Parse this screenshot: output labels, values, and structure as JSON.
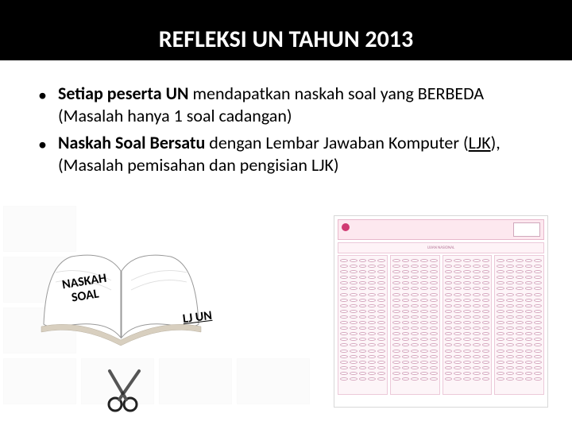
{
  "title": "REFLEKSI UN TAHUN 2013",
  "bullets": [
    {
      "pre": "Setiap peserta UN",
      "mid": " mendapatkan naskah soal yang BERBEDA ",
      "paren": "(Masalah hanya 1 soal cadangan)"
    },
    {
      "pre": "Naskah Soal Bersatu",
      "mid": " dengan Lembar Jawaban Komputer (",
      "ljk": "LJK",
      "post": "), ",
      "paren": "(Masalah pemisahan dan pengisian LJK)"
    }
  ],
  "book": {
    "line1": "NASKAH",
    "line2": "SOAL"
  },
  "lj_label": "LJ UN",
  "sheet": {
    "subtitle": "UJIAN NASIONAL"
  },
  "colors": {
    "title_bg": "#000000",
    "title_fg": "#ffffff",
    "sheet_pink": "#fde8ef",
    "sheet_border": "#ecc9d9"
  }
}
